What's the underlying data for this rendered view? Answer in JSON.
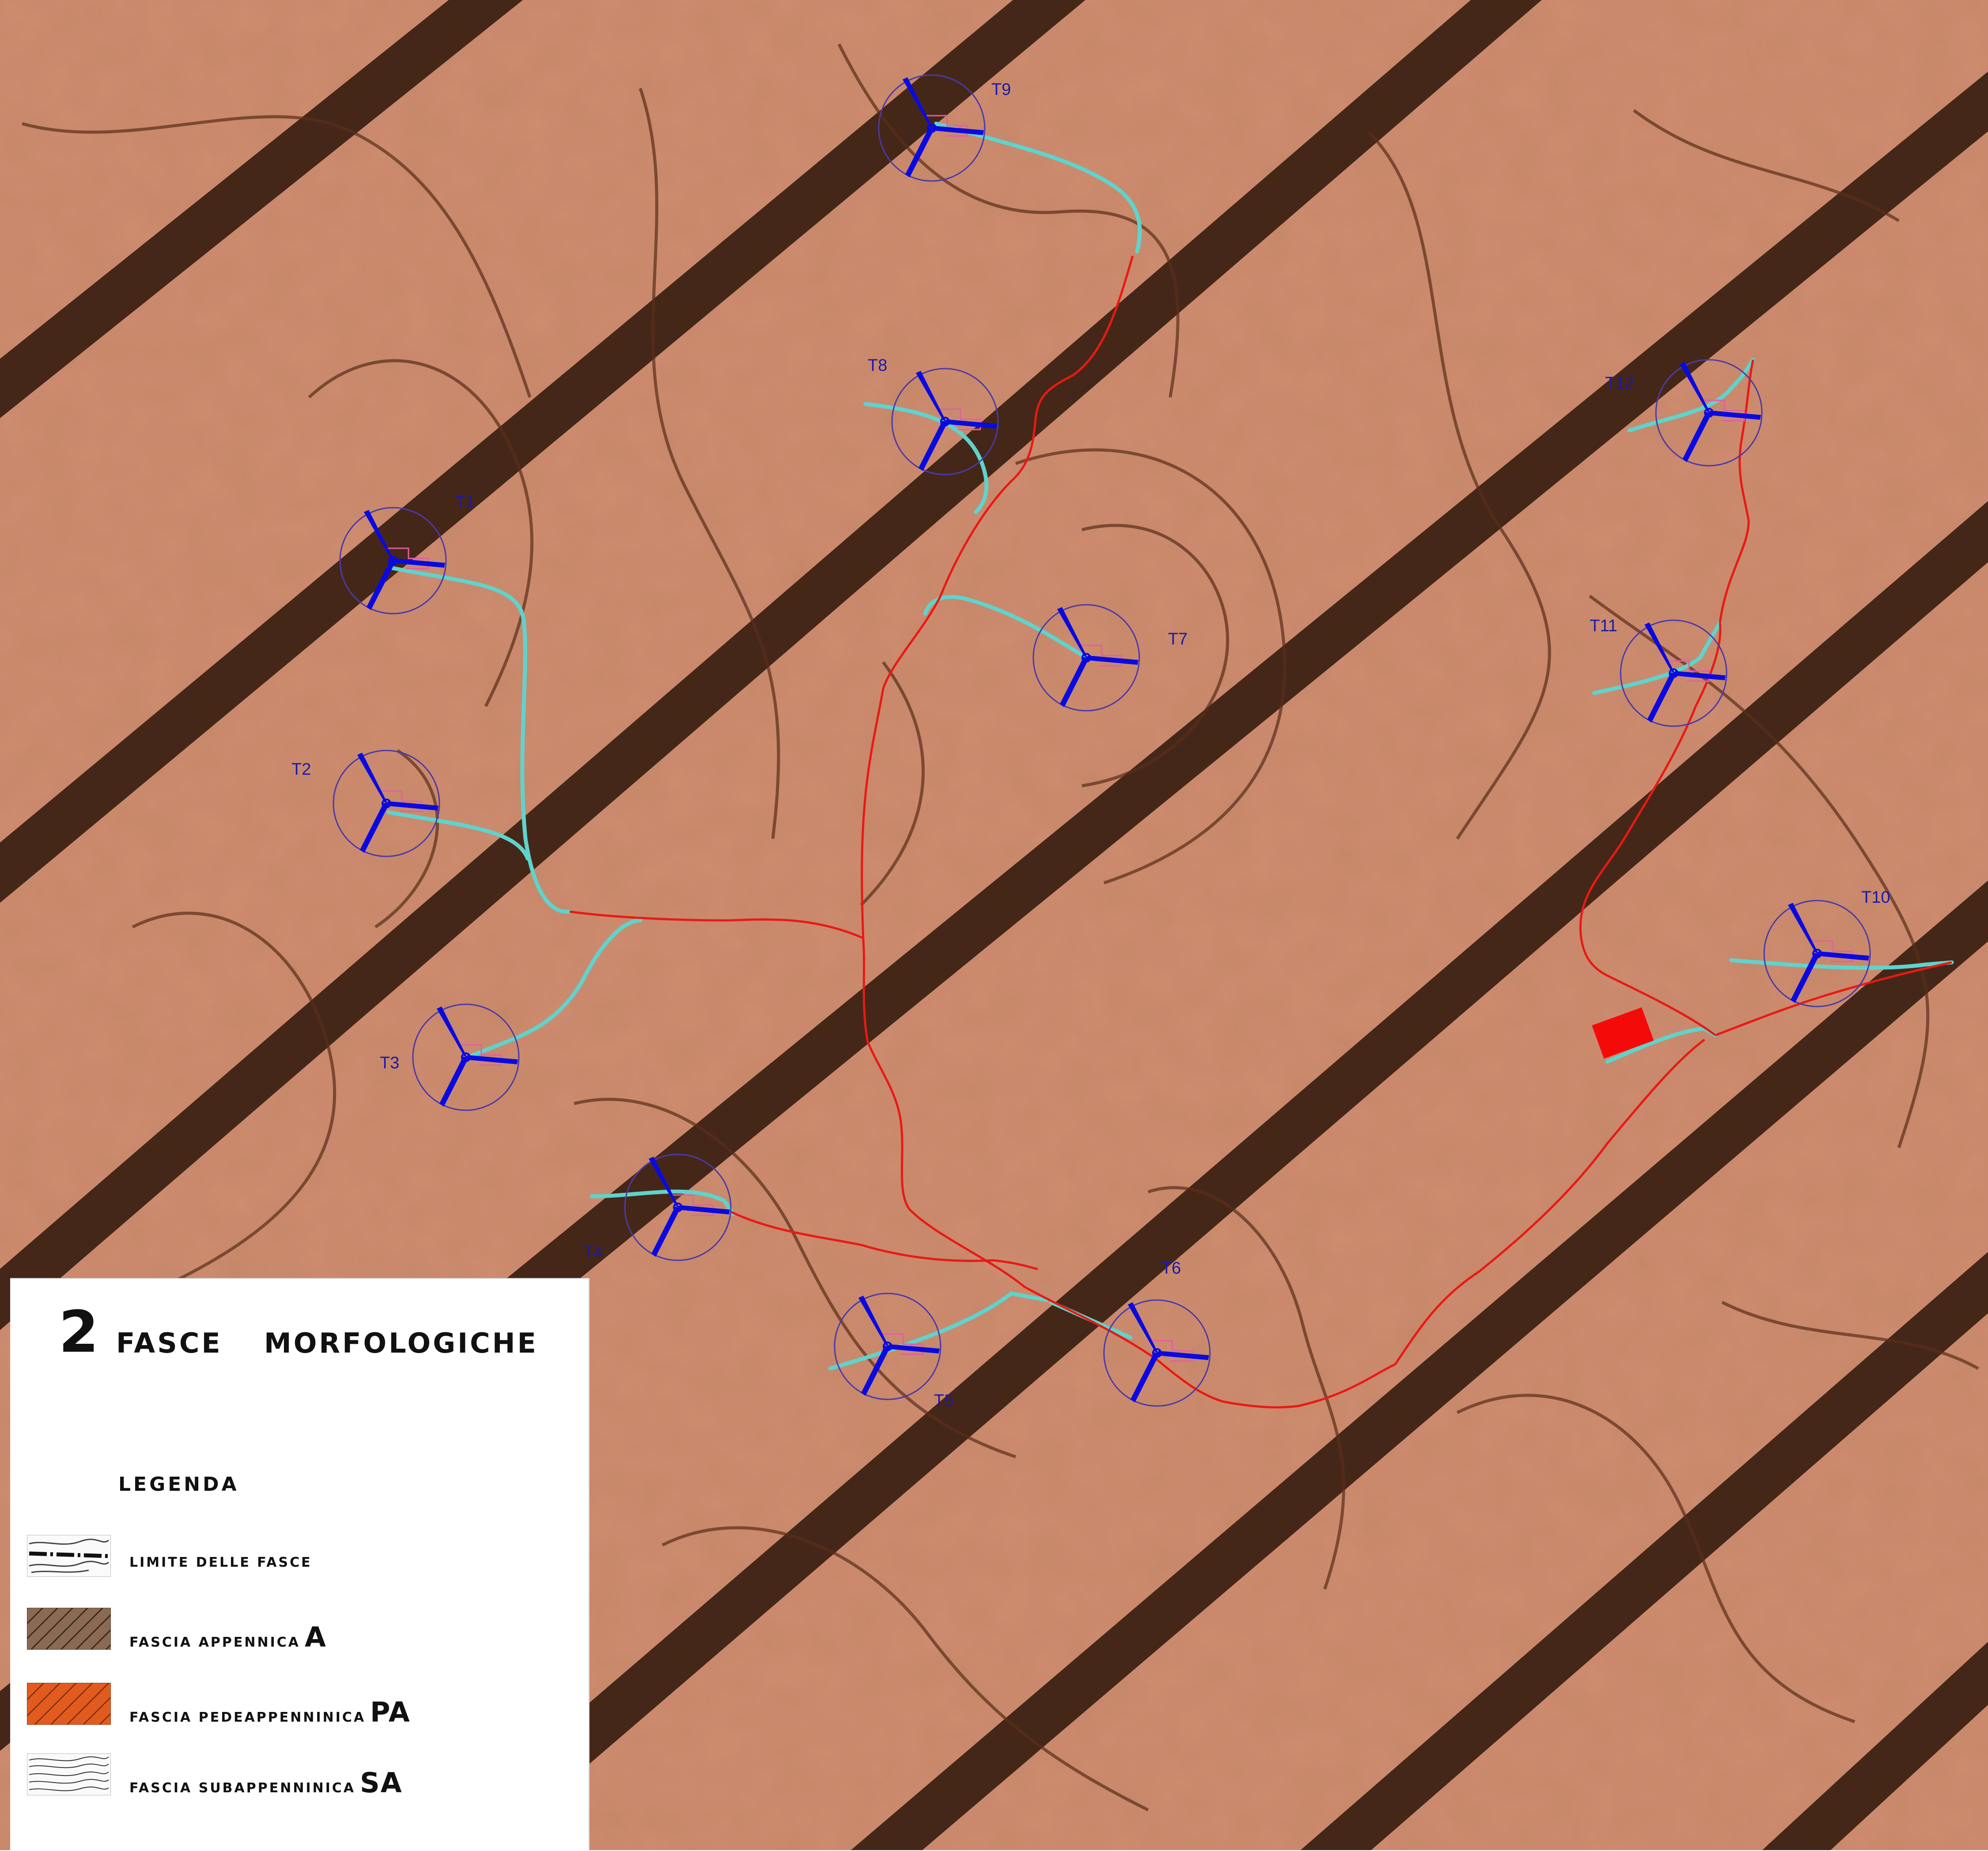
{
  "map": {
    "turbine_labels": [
      "T1",
      "T2",
      "T3",
      "T4",
      "T5",
      "T6",
      "T7",
      "T8",
      "T9",
      "T10",
      "T11",
      "T12"
    ],
    "colors": {
      "background": "#cf8c70",
      "band_dark": "#3a1f12",
      "contour": "#5a2d1a",
      "turbine_blade": "#0a0ae0",
      "turbine_circle": "#4a3aa8",
      "access_road": "#5fd3cc",
      "cable_route": "#e81a14",
      "substation": "#f50a0a",
      "label": "#1a1aa8"
    }
  },
  "legend": {
    "number": "2",
    "title_word1": "FASCE",
    "title_word2": "MORFOLOGICHE",
    "heading": "LEGENDA",
    "items": [
      {
        "label": "LIMITE DELLE FASCE",
        "code": "",
        "swatch": "boundary-lines"
      },
      {
        "label": "FASCIA APPENNICA",
        "code": "A",
        "swatch": "brown-hatch"
      },
      {
        "label": "FASCIA PEDEAPPENNINICA",
        "code": "PA",
        "swatch": "orange-hatch"
      },
      {
        "label": "FASCIA SUBAPPENNINICA",
        "code": "SA",
        "swatch": "white-contours"
      }
    ]
  }
}
